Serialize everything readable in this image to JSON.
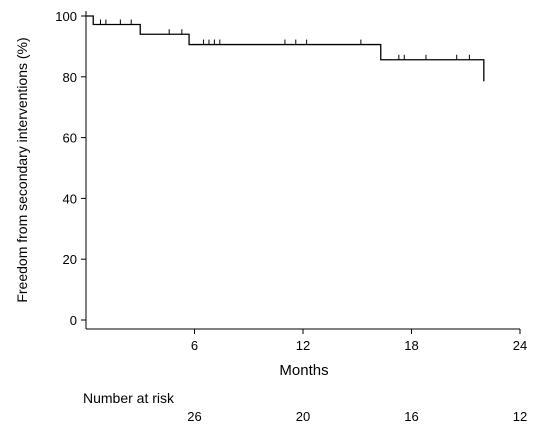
{
  "chart_data": {
    "type": "line",
    "subtype": "kaplan-meier",
    "title": "",
    "xlabel": "Months",
    "ylabel": "Freedom from secondary interventions (%)",
    "xlim": [
      0,
      24
    ],
    "ylim": [
      0,
      100
    ],
    "x_ticks": [
      6,
      12,
      18,
      24
    ],
    "y_ticks": [
      0,
      20,
      40,
      60,
      80,
      100
    ],
    "grid": false,
    "legend": "none",
    "line_color": "#000000",
    "series": [
      {
        "steps": [
          {
            "x": 0,
            "y": 100
          },
          {
            "x": 0.4,
            "y": 97.2
          },
          {
            "x": 3.0,
            "y": 94.0
          },
          {
            "x": 5.7,
            "y": 90.6
          },
          {
            "x": 16.3,
            "y": 85.6
          },
          {
            "x": 22.0,
            "y": 78.5
          }
        ],
        "end_x": 22.0,
        "censored": [
          {
            "x": 0.8,
            "y": 97.2
          },
          {
            "x": 1.1,
            "y": 97.2
          },
          {
            "x": 1.9,
            "y": 97.2
          },
          {
            "x": 2.5,
            "y": 97.2
          },
          {
            "x": 4.6,
            "y": 94.0
          },
          {
            "x": 5.3,
            "y": 94.0
          },
          {
            "x": 6.5,
            "y": 90.6
          },
          {
            "x": 6.8,
            "y": 90.6
          },
          {
            "x": 7.1,
            "y": 90.6
          },
          {
            "x": 7.4,
            "y": 90.6
          },
          {
            "x": 11.0,
            "y": 90.6
          },
          {
            "x": 11.6,
            "y": 90.6
          },
          {
            "x": 12.2,
            "y": 90.6
          },
          {
            "x": 15.2,
            "y": 90.6
          },
          {
            "x": 17.3,
            "y": 85.6
          },
          {
            "x": 17.6,
            "y": 85.6
          },
          {
            "x": 18.8,
            "y": 85.6
          },
          {
            "x": 20.5,
            "y": 85.6
          },
          {
            "x": 21.2,
            "y": 85.6
          }
        ]
      }
    ],
    "risk_table": {
      "label": "Number at risk",
      "x": [
        6,
        12,
        18,
        24
      ],
      "values": [
        "26",
        "20",
        "16",
        "12"
      ]
    }
  }
}
